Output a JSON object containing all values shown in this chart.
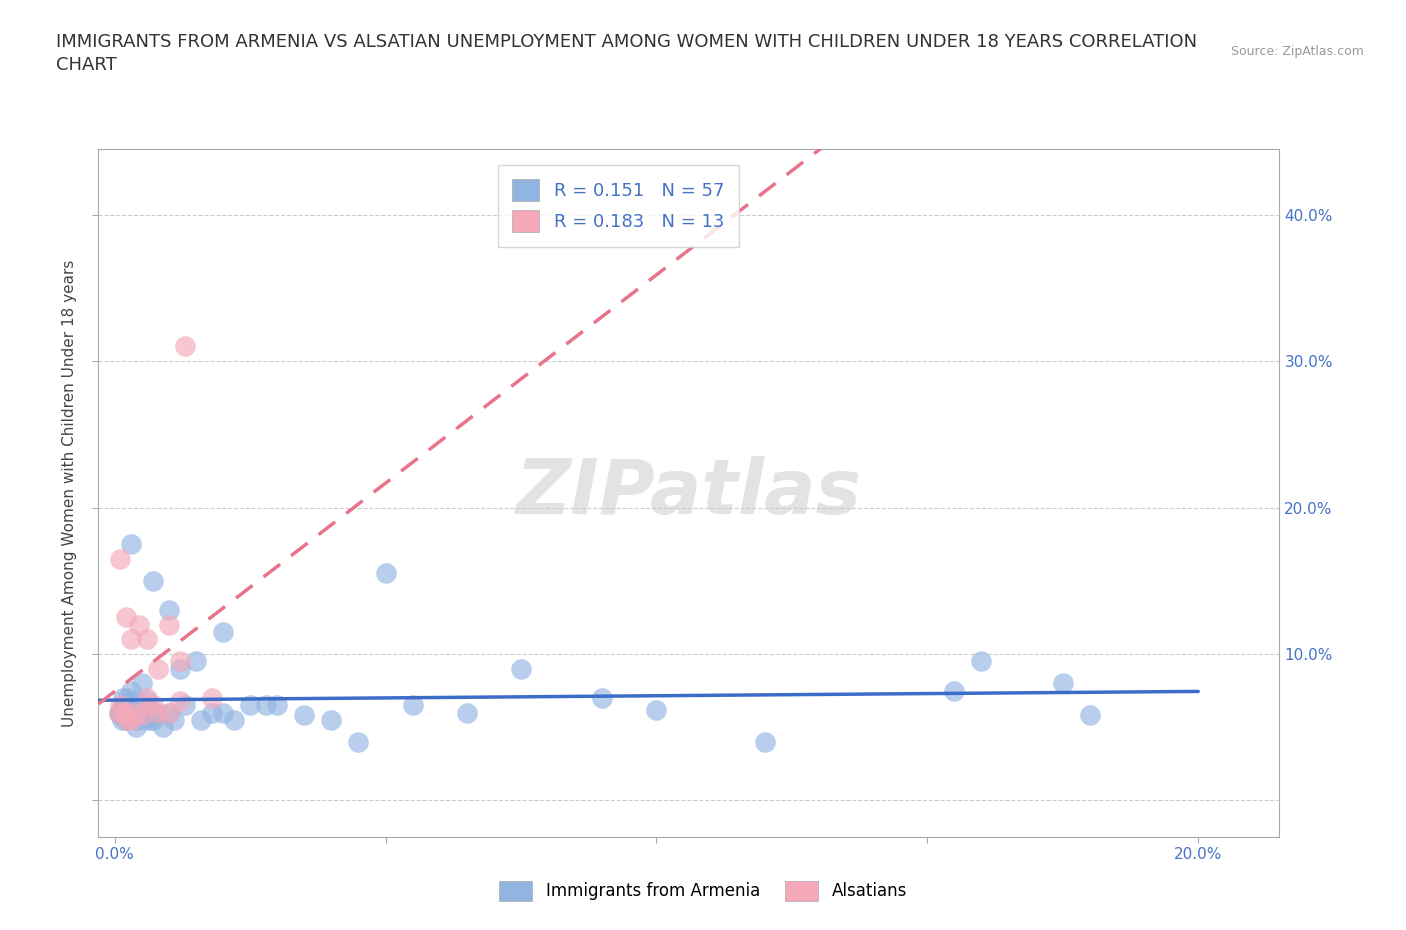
{
  "title_line1": "IMMIGRANTS FROM ARMENIA VS ALSATIAN UNEMPLOYMENT AMONG WOMEN WITH CHILDREN UNDER 18 YEARS CORRELATION",
  "title_line2": "CHART",
  "source": "Source: ZipAtlas.com",
  "ylabel": "Unemployment Among Women with Children Under 18 years",
  "xlim": [
    -0.003,
    0.215
  ],
  "ylim": [
    -0.025,
    0.445
  ],
  "color_blue": "#92B4E3",
  "color_pink": "#F4A8B8",
  "color_line_blue": "#3B6CC8",
  "color_line_pink": "#E8748A",
  "background": "#ffffff",
  "grid_color": "#CCCCCC",
  "title_fontsize": 13,
  "axis_label_fontsize": 11,
  "tick_fontsize": 11,
  "armenia_x": [
    0.0008,
    0.001,
    0.0012,
    0.0013,
    0.0015,
    0.0016,
    0.0017,
    0.0018,
    0.002,
    0.002,
    0.0022,
    0.0023,
    0.0025,
    0.0026,
    0.0028,
    0.003,
    0.003,
    0.0032,
    0.0035,
    0.0036,
    0.004,
    0.004,
    0.0042,
    0.0045,
    0.005,
    0.005,
    0.0055,
    0.006,
    0.006,
    0.0065,
    0.007,
    0.0075,
    0.008,
    0.009,
    0.01,
    0.011,
    0.012,
    0.013,
    0.015,
    0.016,
    0.018,
    0.02,
    0.022,
    0.025,
    0.028,
    0.03,
    0.035,
    0.04,
    0.045,
    0.055,
    0.065,
    0.075,
    0.09,
    0.1,
    0.12,
    0.155,
    0.18
  ],
  "armenia_y": [
    0.06,
    0.058,
    0.062,
    0.055,
    0.07,
    0.065,
    0.058,
    0.06,
    0.06,
    0.055,
    0.065,
    0.07,
    0.058,
    0.062,
    0.06,
    0.075,
    0.065,
    0.058,
    0.068,
    0.06,
    0.055,
    0.05,
    0.06,
    0.058,
    0.08,
    0.065,
    0.055,
    0.06,
    0.068,
    0.055,
    0.055,
    0.06,
    0.058,
    0.05,
    0.06,
    0.055,
    0.09,
    0.065,
    0.095,
    0.055,
    0.06,
    0.06,
    0.055,
    0.065,
    0.065,
    0.065,
    0.058,
    0.055,
    0.04,
    0.065,
    0.06,
    0.09,
    0.07,
    0.062,
    0.04,
    0.075,
    0.058
  ],
  "armenia_x2": [
    0.003,
    0.007,
    0.01,
    0.02,
    0.05,
    0.16,
    0.175
  ],
  "armenia_y2": [
    0.175,
    0.15,
    0.13,
    0.115,
    0.155,
    0.095,
    0.08
  ],
  "alsatian_x": [
    0.0008,
    0.001,
    0.0015,
    0.002,
    0.0025,
    0.003,
    0.004,
    0.005,
    0.006,
    0.007,
    0.008,
    0.01,
    0.012
  ],
  "alsatian_y": [
    0.06,
    0.065,
    0.06,
    0.06,
    0.055,
    0.055,
    0.06,
    0.058,
    0.07,
    0.065,
    0.06,
    0.06,
    0.068
  ],
  "alsatian_x2": [
    0.001,
    0.002,
    0.003,
    0.0045,
    0.006,
    0.008,
    0.01,
    0.012,
    0.018
  ],
  "alsatian_y2": [
    0.165,
    0.125,
    0.11,
    0.12,
    0.11,
    0.09,
    0.12,
    0.095,
    0.07
  ],
  "alsatian_outlier_x": [
    0.013
  ],
  "alsatian_outlier_y": [
    0.31
  ]
}
